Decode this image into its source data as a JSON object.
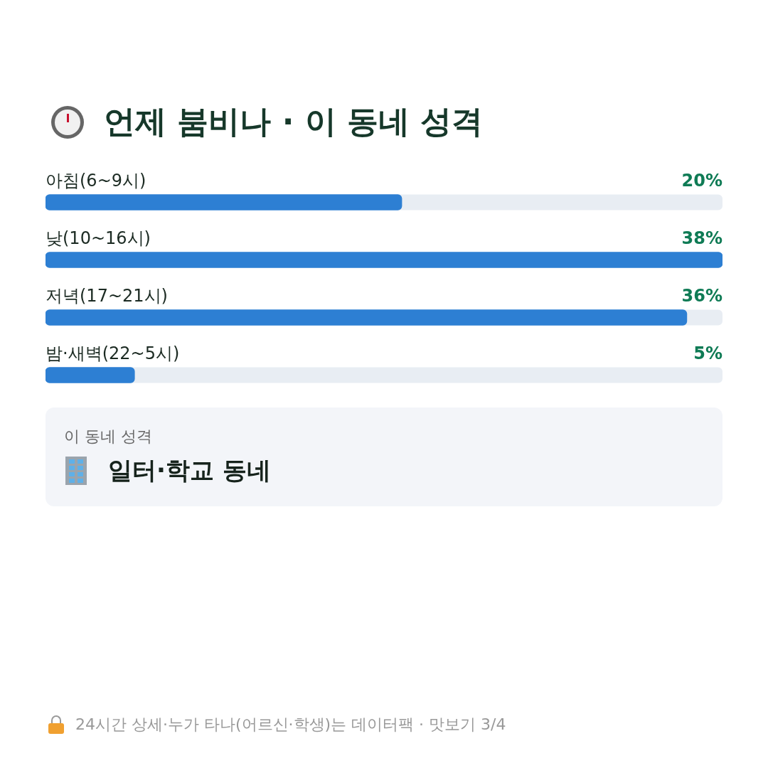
{
  "chart_data": {
    "type": "bar",
    "orientation": "horizontal",
    "title": "언제 붐비나 · 이 동네 성격",
    "categories": [
      "아침(6~9시)",
      "낮(10~16시)",
      "저녁(17~21시)",
      "밤·새벽(22~5시)"
    ],
    "values": [
      20,
      38,
      36,
      5
    ],
    "value_labels": [
      "20%",
      "38%",
      "36%",
      "5%"
    ],
    "color": "#2d7fd3",
    "annotations": [
      "이 동네 성격",
      "일터·학교 동네",
      "24시간 상세·누가 타나(어르신·학생)는 데이터팩 · 맛보기 3/4"
    ]
  }
}
